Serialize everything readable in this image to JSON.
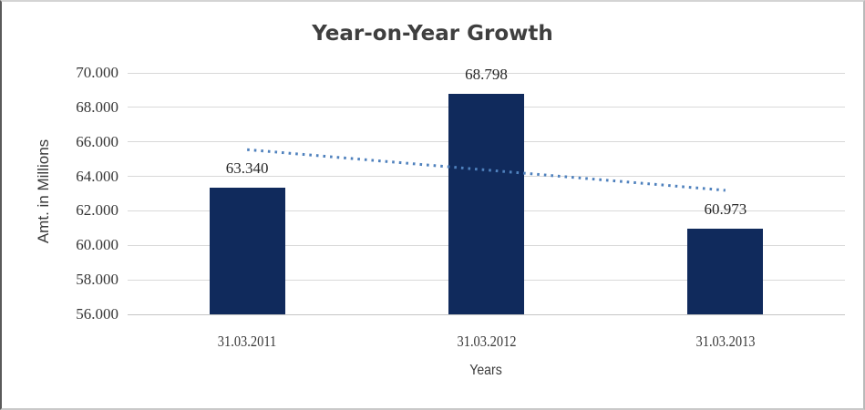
{
  "chart_data": {
    "type": "bar",
    "title": "Year-on-Year Growth",
    "xlabel": "Years",
    "ylabel": "Amt. in Millions",
    "categories": [
      "31.03.2011",
      "31.03.2012",
      "31.03.2013"
    ],
    "values": [
      63.34,
      68.798,
      60.973
    ],
    "data_labels": [
      "63.340",
      "68.798",
      "60.973"
    ],
    "ylim": [
      56.0,
      70.0
    ],
    "ytick_step": 2.0,
    "yticks": [
      {
        "value": 70.0,
        "label": "70.000"
      },
      {
        "value": 68.0,
        "label": "68.000"
      },
      {
        "value": 66.0,
        "label": "66.000"
      },
      {
        "value": 64.0,
        "label": "64.000"
      },
      {
        "value": 62.0,
        "label": "62.000"
      },
      {
        "value": 60.0,
        "label": "60.000"
      },
      {
        "value": 58.0,
        "label": "58.000"
      },
      {
        "value": 56.0,
        "label": "56.000"
      }
    ],
    "grid": "horizontal-only",
    "legend": "none",
    "trendline": {
      "type": "linear",
      "style": "dotted",
      "y_at_first_category": 65.55,
      "y_at_last_category": 63.19
    },
    "colors": {
      "bar": "#102a5c",
      "trendline": "#4f81bd",
      "gridline": "#d9d9d9",
      "axis_line": "#c6c6c6",
      "title_text": "#3f3f3f",
      "tick_text": "#363636",
      "data_label_text": "#262626"
    }
  }
}
